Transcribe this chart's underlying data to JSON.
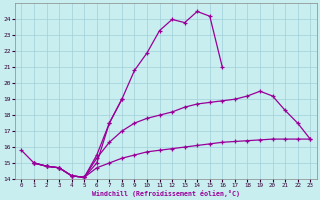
{
  "xlabel": "Windchill (Refroidissement éolien,°C)",
  "bg_color": "#c8eef0",
  "grid_color": "#a0d0d8",
  "line_color": "#990099",
  "xlim": [
    -0.5,
    23.5
  ],
  "ylim": [
    14,
    25
  ],
  "xticks": [
    0,
    1,
    2,
    3,
    4,
    5,
    6,
    7,
    8,
    9,
    10,
    11,
    12,
    13,
    14,
    15,
    16,
    17,
    18,
    19,
    20,
    21,
    22,
    23
  ],
  "yticks": [
    14,
    15,
    16,
    17,
    18,
    19,
    20,
    21,
    22,
    23,
    24
  ],
  "lines": [
    {
      "x": [
        0,
        1,
        2,
        3,
        4,
        5,
        6,
        7,
        8
      ],
      "y": [
        15.8,
        15.0,
        14.8,
        14.7,
        14.2,
        14.1,
        15.5,
        17.5,
        19.0
      ]
    },
    {
      "x": [
        1,
        2,
        3,
        4,
        5,
        6,
        7,
        8,
        9,
        10,
        11,
        12,
        13,
        14,
        15,
        16
      ],
      "y": [
        15.0,
        14.8,
        14.7,
        14.2,
        14.1,
        15.0,
        17.5,
        19.0,
        20.8,
        21.9,
        23.3,
        24.0,
        23.8,
        24.5,
        24.2,
        21.0
      ]
    },
    {
      "x": [
        1,
        2,
        3,
        4,
        5,
        6,
        7,
        8,
        9,
        10,
        11,
        12,
        13,
        14,
        15,
        16,
        17,
        18,
        19,
        20,
        21,
        22,
        23
      ],
      "y": [
        15.0,
        14.8,
        14.7,
        14.2,
        14.1,
        15.3,
        16.3,
        17.0,
        17.5,
        17.8,
        18.0,
        18.2,
        18.5,
        18.7,
        18.8,
        18.9,
        19.0,
        19.2,
        19.5,
        19.2,
        18.3,
        17.5,
        16.5
      ]
    },
    {
      "x": [
        1,
        2,
        3,
        4,
        5,
        6,
        7,
        8,
        9,
        10,
        11,
        12,
        13,
        14,
        15,
        16,
        17,
        18,
        19,
        20,
        21,
        22,
        23
      ],
      "y": [
        15.0,
        14.8,
        14.7,
        14.2,
        14.1,
        14.7,
        15.0,
        15.3,
        15.5,
        15.7,
        15.8,
        15.9,
        16.0,
        16.1,
        16.2,
        16.3,
        16.35,
        16.4,
        16.45,
        16.5,
        16.5,
        16.5,
        16.5
      ]
    }
  ]
}
